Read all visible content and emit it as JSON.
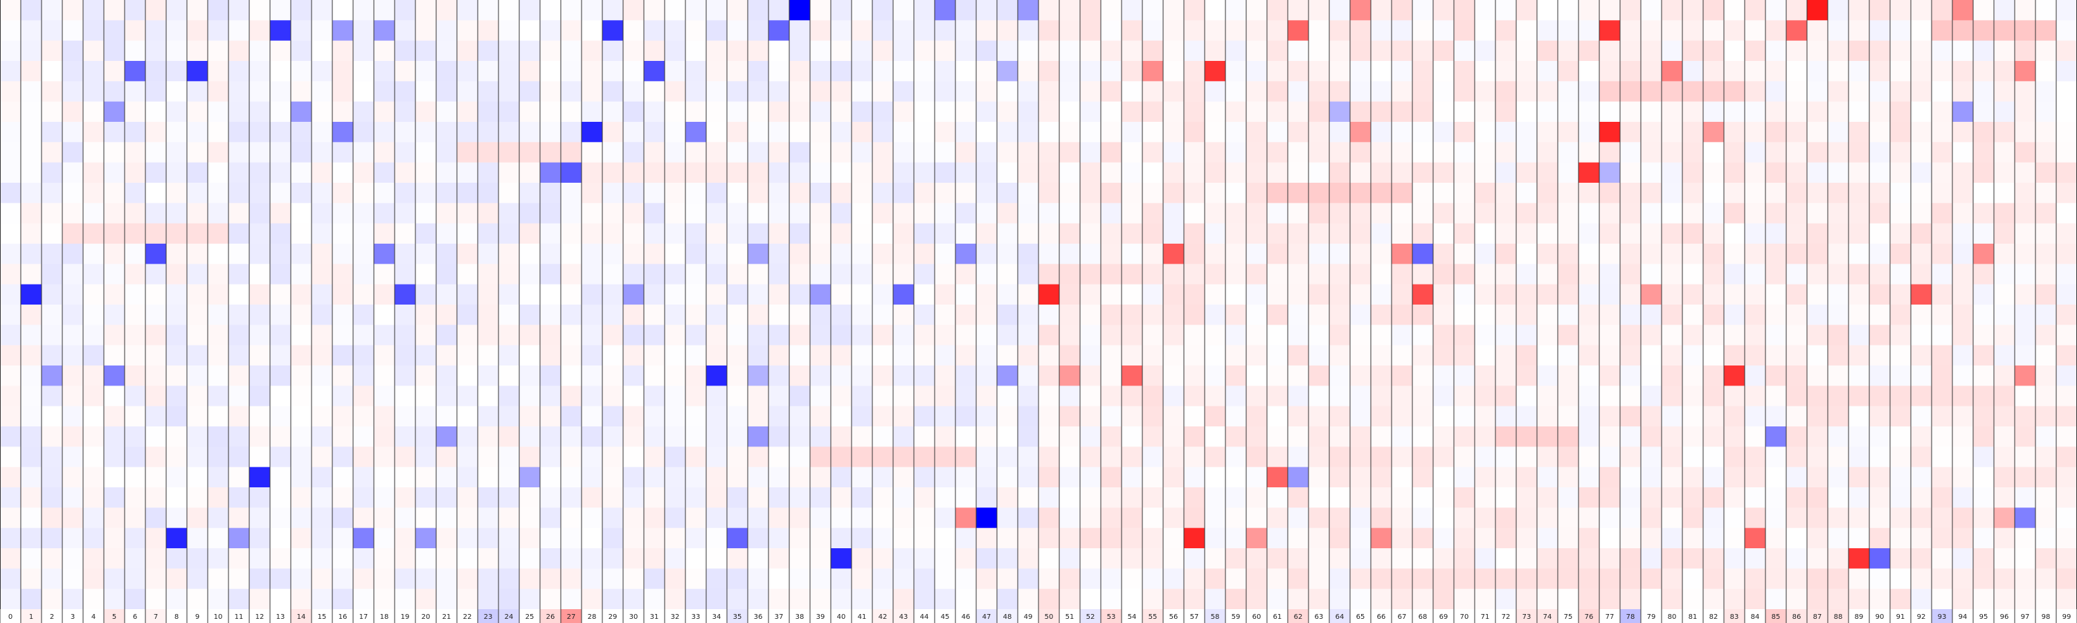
{
  "chart_data": {
    "type": "heatmap",
    "columns": [
      "0",
      "1",
      "2",
      "3",
      "4",
      "5",
      "6",
      "7",
      "8",
      "9",
      "10",
      "11",
      "12",
      "13",
      "14",
      "15",
      "16",
      "17",
      "18",
      "19",
      "20",
      "21",
      "22",
      "23",
      "24",
      "25",
      "26",
      "27",
      "28",
      "29",
      "30",
      "31",
      "32",
      "33",
      "34",
      "35",
      "36",
      "37",
      "38",
      "39",
      "40",
      "41",
      "42",
      "43",
      "44",
      "45",
      "46",
      "47",
      "48",
      "49",
      "50",
      "51",
      "52",
      "53",
      "54",
      "55",
      "56",
      "57",
      "58",
      "59",
      "60",
      "61",
      "62",
      "63",
      "64",
      "65",
      "66",
      "67",
      "68",
      "69",
      "70",
      "71",
      "72",
      "73",
      "74",
      "75",
      "76",
      "77",
      "78",
      "79",
      "80",
      "81",
      "82",
      "83",
      "84",
      "85",
      "86",
      "87",
      "88",
      "89",
      "90",
      "91",
      "92",
      "93",
      "94",
      "95",
      "96",
      "97",
      "98",
      "99"
    ],
    "rows": 30,
    "value_range": [
      -1,
      1
    ],
    "colormap": {
      "negative": "#0000ff",
      "zero": "#ffffff",
      "positive": "#ff0000"
    },
    "column_label_values": [
      0.0,
      0.05,
      0.0,
      0.0,
      0.0,
      0.1,
      0.0,
      0.05,
      0.0,
      0.0,
      0.0,
      0.0,
      0.0,
      0.0,
      0.1,
      0.0,
      0.0,
      0.0,
      0.0,
      0.0,
      0.0,
      0.0,
      0.0,
      -0.2,
      -0.15,
      0.0,
      0.15,
      0.4,
      0.0,
      0.0,
      0.0,
      0.0,
      0.0,
      0.0,
      0.0,
      -0.1,
      0.0,
      0.0,
      0.0,
      0.0,
      0.0,
      0.0,
      0.05,
      0.05,
      0.0,
      0.0,
      0.0,
      -0.1,
      -0.05,
      0.0,
      0.1,
      0.0,
      -0.1,
      0.15,
      0.0,
      0.1,
      0.0,
      0.0,
      -0.1,
      0.0,
      0.0,
      0.0,
      0.15,
      0.0,
      -0.1,
      0.0,
      0.0,
      0.0,
      0.0,
      0.0,
      0.0,
      0.0,
      0.0,
      0.1,
      0.1,
      0.0,
      0.15,
      0.0,
      -0.25,
      0.0,
      0.0,
      0.0,
      0.0,
      0.1,
      0.0,
      0.2,
      0.1,
      0.1,
      0.1,
      0.0,
      0.0,
      0.0,
      0.0,
      -0.2,
      0.0,
      0.0,
      0.0,
      0.0,
      0.0,
      0.0
    ],
    "strong_cells": [
      {
        "row": 0,
        "col": 38,
        "value": -1.0
      },
      {
        "row": 0,
        "col": 45,
        "value": -0.5
      },
      {
        "row": 0,
        "col": 49,
        "value": -0.4
      },
      {
        "row": 0,
        "col": 65,
        "value": 0.45
      },
      {
        "row": 0,
        "col": 87,
        "value": 0.9
      },
      {
        "row": 0,
        "col": 94,
        "value": 0.45
      },
      {
        "row": 1,
        "col": 13,
        "value": -0.8
      },
      {
        "row": 1,
        "col": 16,
        "value": -0.4
      },
      {
        "row": 1,
        "col": 18,
        "value": -0.4
      },
      {
        "row": 1,
        "col": 29,
        "value": -0.8
      },
      {
        "row": 1,
        "col": 37,
        "value": -0.6
      },
      {
        "row": 1,
        "col": 62,
        "value": 0.6
      },
      {
        "row": 1,
        "col": 77,
        "value": 0.8
      },
      {
        "row": 1,
        "col": 86,
        "value": 0.6
      },
      {
        "row": 3,
        "col": 6,
        "value": -0.6
      },
      {
        "row": 3,
        "col": 9,
        "value": -0.8
      },
      {
        "row": 3,
        "col": 31,
        "value": -0.7
      },
      {
        "row": 3,
        "col": 48,
        "value": -0.3
      },
      {
        "row": 3,
        "col": 55,
        "value": 0.45
      },
      {
        "row": 3,
        "col": 58,
        "value": 0.8
      },
      {
        "row": 3,
        "col": 80,
        "value": 0.5
      },
      {
        "row": 3,
        "col": 97,
        "value": 0.45
      },
      {
        "row": 5,
        "col": 5,
        "value": -0.4
      },
      {
        "row": 5,
        "col": 14,
        "value": -0.4
      },
      {
        "row": 5,
        "col": 64,
        "value": -0.3
      },
      {
        "row": 5,
        "col": 94,
        "value": -0.4
      },
      {
        "row": 6,
        "col": 16,
        "value": -0.5
      },
      {
        "row": 6,
        "col": 28,
        "value": -0.85
      },
      {
        "row": 6,
        "col": 33,
        "value": -0.5
      },
      {
        "row": 6,
        "col": 65,
        "value": 0.4
      },
      {
        "row": 6,
        "col": 77,
        "value": 0.85
      },
      {
        "row": 6,
        "col": 82,
        "value": 0.4
      },
      {
        "row": 8,
        "col": 26,
        "value": -0.5
      },
      {
        "row": 8,
        "col": 27,
        "value": -0.65
      },
      {
        "row": 8,
        "col": 76,
        "value": 0.8
      },
      {
        "row": 8,
        "col": 77,
        "value": -0.3
      },
      {
        "row": 12,
        "col": 7,
        "value": -0.7
      },
      {
        "row": 12,
        "col": 18,
        "value": -0.5
      },
      {
        "row": 12,
        "col": 36,
        "value": -0.35
      },
      {
        "row": 12,
        "col": 46,
        "value": -0.45
      },
      {
        "row": 12,
        "col": 56,
        "value": 0.65
      },
      {
        "row": 12,
        "col": 67,
        "value": 0.45
      },
      {
        "row": 12,
        "col": 68,
        "value": -0.6
      },
      {
        "row": 12,
        "col": 95,
        "value": 0.45
      },
      {
        "row": 14,
        "col": 1,
        "value": -0.85
      },
      {
        "row": 14,
        "col": 19,
        "value": -0.7
      },
      {
        "row": 14,
        "col": 30,
        "value": -0.4
      },
      {
        "row": 14,
        "col": 39,
        "value": -0.4
      },
      {
        "row": 14,
        "col": 43,
        "value": -0.6
      },
      {
        "row": 14,
        "col": 50,
        "value": 0.85
      },
      {
        "row": 14,
        "col": 68,
        "value": 0.7
      },
      {
        "row": 14,
        "col": 79,
        "value": 0.4
      },
      {
        "row": 14,
        "col": 92,
        "value": 0.65
      },
      {
        "row": 18,
        "col": 2,
        "value": -0.4
      },
      {
        "row": 18,
        "col": 5,
        "value": -0.5
      },
      {
        "row": 18,
        "col": 34,
        "value": -0.85
      },
      {
        "row": 18,
        "col": 36,
        "value": -0.3
      },
      {
        "row": 18,
        "col": 48,
        "value": -0.4
      },
      {
        "row": 18,
        "col": 51,
        "value": 0.4
      },
      {
        "row": 18,
        "col": 54,
        "value": 0.6
      },
      {
        "row": 18,
        "col": 83,
        "value": 0.8
      },
      {
        "row": 18,
        "col": 97,
        "value": 0.45
      },
      {
        "row": 21,
        "col": 21,
        "value": -0.4
      },
      {
        "row": 21,
        "col": 36,
        "value": -0.4
      },
      {
        "row": 21,
        "col": 85,
        "value": -0.5
      },
      {
        "row": 23,
        "col": 12,
        "value": -0.85
      },
      {
        "row": 23,
        "col": 25,
        "value": -0.35
      },
      {
        "row": 23,
        "col": 61,
        "value": 0.6
      },
      {
        "row": 23,
        "col": 62,
        "value": -0.4
      },
      {
        "row": 25,
        "col": 46,
        "value": 0.45
      },
      {
        "row": 25,
        "col": 47,
        "value": -1.0
      },
      {
        "row": 25,
        "col": 96,
        "value": 0.3
      },
      {
        "row": 25,
        "col": 97,
        "value": -0.5
      },
      {
        "row": 26,
        "col": 8,
        "value": -0.85
      },
      {
        "row": 26,
        "col": 11,
        "value": -0.4
      },
      {
        "row": 26,
        "col": 17,
        "value": -0.5
      },
      {
        "row": 26,
        "col": 20,
        "value": -0.4
      },
      {
        "row": 26,
        "col": 35,
        "value": -0.6
      },
      {
        "row": 26,
        "col": 57,
        "value": 0.85
      },
      {
        "row": 26,
        "col": 60,
        "value": 0.4
      },
      {
        "row": 26,
        "col": 66,
        "value": 0.45
      },
      {
        "row": 26,
        "col": 84,
        "value": 0.6
      },
      {
        "row": 27,
        "col": 40,
        "value": -0.85
      },
      {
        "row": 27,
        "col": 89,
        "value": 0.8
      },
      {
        "row": 27,
        "col": 90,
        "value": -0.6
      }
    ],
    "band_cells": [
      {
        "row": 1,
        "cols": [
          93,
          98
        ],
        "value": 0.22
      },
      {
        "row": 4,
        "cols": [
          77,
          83
        ],
        "value": 0.18
      },
      {
        "row": 5,
        "cols": [
          63,
          67
        ],
        "value": 0.12
      },
      {
        "row": 7,
        "cols": [
          22,
          27
        ],
        "value": 0.12
      },
      {
        "row": 8,
        "cols": [
          28,
          36
        ],
        "value": 0.08
      },
      {
        "row": 9,
        "cols": [
          61,
          67
        ],
        "value": 0.2
      },
      {
        "row": 11,
        "cols": [
          3,
          10
        ],
        "value": 0.12
      },
      {
        "row": 13,
        "cols": [
          50,
          54
        ],
        "value": 0.12
      },
      {
        "row": 19,
        "cols": [
          86,
          96
        ],
        "value": 0.12
      },
      {
        "row": 21,
        "cols": [
          72,
          75
        ],
        "value": 0.18
      },
      {
        "row": 22,
        "cols": [
          39,
          46
        ],
        "value": 0.15
      },
      {
        "row": 28,
        "cols": [
          66,
          79
        ],
        "value": 0.12
      }
    ]
  }
}
